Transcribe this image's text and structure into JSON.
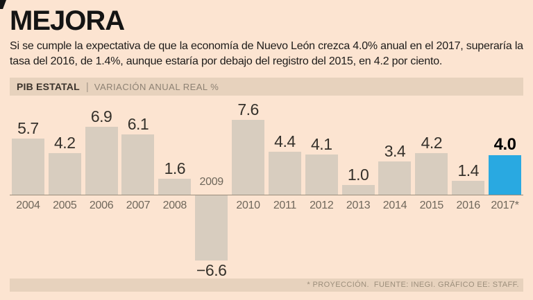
{
  "page": {
    "title": "MEJORA",
    "subtitle": "Si se cumple la expectativa de que la economía de Nuevo León crezca 4.0% anual en el 2017, superaría la tasa del 2016, de 1.4%, aunque estaría por debajo del registro del 2015, en 4.2 por ciento."
  },
  "band": {
    "label": "PIB ESTATAL",
    "separator": "|",
    "sublabel": "VARIACIÓN ANUAL REAL %"
  },
  "chart_data": {
    "type": "bar",
    "title": "PIB ESTATAL",
    "ylabel": "VARIACIÓN ANUAL REAL %",
    "categories": [
      "2004",
      "2005",
      "2006",
      "2007",
      "2008",
      "2009",
      "2010",
      "2011",
      "2012",
      "2013",
      "2014",
      "2015",
      "2016",
      "2017*"
    ],
    "values": [
      5.7,
      4.2,
      6.9,
      6.1,
      1.6,
      -6.6,
      7.6,
      4.4,
      4.1,
      1.0,
      3.4,
      4.2,
      1.4,
      4.0
    ],
    "highlight_index": 13,
    "bar_color": "#d8cdbf",
    "highlight_color": "#29a9e1",
    "baseline": 0,
    "ylim": [
      -7.5,
      8.5
    ],
    "grid": "off",
    "legend": "none",
    "value_labels_shown": true
  },
  "footer": {
    "note": "* PROYECCIÓN.  FUENTE: INEGI. GRÁFICO EE: STAFF."
  },
  "colors": {
    "background": "#fce4d1",
    "band_background": "#e7d2bd",
    "bar": "#d8cdbf",
    "highlight": "#29a9e1",
    "axis": "#9a8c7a"
  }
}
